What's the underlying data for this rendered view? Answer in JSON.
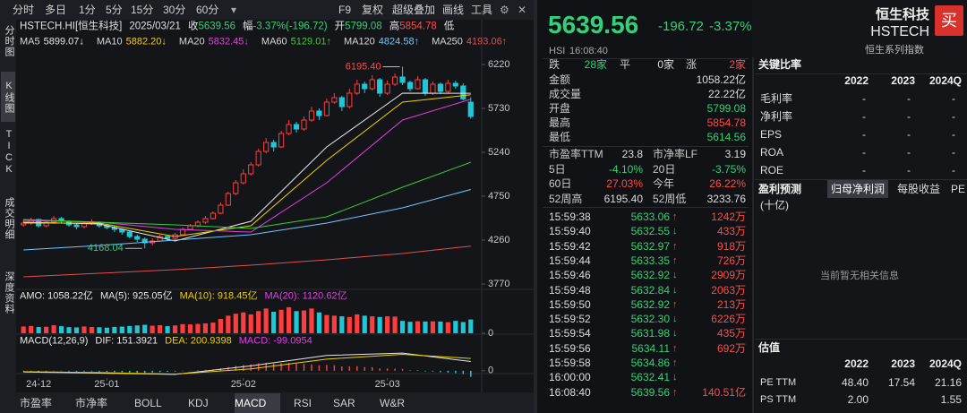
{
  "toolbar": {
    "periods": [
      "分时",
      "多日",
      "1分",
      "5分",
      "15分",
      "30分",
      "60分"
    ],
    "tools": [
      "F9",
      "复权",
      "超级叠加",
      "画线",
      "工具"
    ]
  },
  "sidebar": {
    "items": [
      "分时图",
      "K线图",
      "TICK",
      "成交明细",
      "深度资料"
    ],
    "active": 1
  },
  "chart_data": [
    {
      "type": "candlestick",
      "info": [
        {
          "label": "HSTECH.HI[恒生科技]"
        },
        {
          "label": "2025/03/21"
        },
        {
          "label": "收",
          "value": "5639.56",
          "tone": "down"
        },
        {
          "label": "幅",
          "value": "-3.37%(-196.72)",
          "tone": "down"
        },
        {
          "label": "开",
          "value": "5799.08",
          "tone": "down"
        },
        {
          "label": "高",
          "value": "5854.78",
          "tone": "up"
        },
        {
          "label": "低"
        }
      ],
      "colors": {
        "up": "#ff3d3d",
        "down": "#1fc8d8"
      },
      "ylim": [
        3720,
        6320
      ],
      "yticks": [
        3770,
        4260,
        4750,
        5240,
        5730,
        6220
      ],
      "grid": false,
      "ohlc": [
        [
          4430,
          4490,
          4410,
          4450
        ],
        [
          4450,
          4510,
          4430,
          4480
        ],
        [
          4490,
          4500,
          4400,
          4420
        ],
        [
          4420,
          4480,
          4400,
          4460
        ],
        [
          4460,
          4530,
          4440,
          4500
        ],
        [
          4500,
          4520,
          4450,
          4470
        ],
        [
          4470,
          4480,
          4410,
          4430
        ],
        [
          4430,
          4450,
          4380,
          4410
        ],
        [
          4410,
          4470,
          4390,
          4450
        ],
        [
          4450,
          4490,
          4430,
          4460
        ],
        [
          4460,
          4470,
          4400,
          4420
        ],
        [
          4420,
          4440,
          4380,
          4400
        ],
        [
          4400,
          4420,
          4350,
          4380
        ],
        [
          4380,
          4390,
          4320,
          4350
        ],
        [
          4350,
          4360,
          4280,
          4300
        ],
        [
          4300,
          4320,
          4240,
          4270
        ],
        [
          4270,
          4290,
          4168.04,
          4230
        ],
        [
          4230,
          4280,
          4200,
          4250
        ],
        [
          4250,
          4320,
          4240,
          4300
        ],
        [
          4300,
          4310,
          4250,
          4280
        ],
        [
          4280,
          4340,
          4270,
          4320
        ],
        [
          4320,
          4400,
          4310,
          4380
        ],
        [
          4380,
          4440,
          4370,
          4420
        ],
        [
          4420,
          4480,
          4400,
          4460
        ],
        [
          4460,
          4530,
          4440,
          4500
        ],
        [
          4500,
          4580,
          4490,
          4560
        ],
        [
          4560,
          4680,
          4550,
          4650
        ],
        [
          4650,
          4800,
          4640,
          4780
        ],
        [
          4780,
          4930,
          4760,
          4900
        ],
        [
          4900,
          5050,
          4880,
          5000
        ],
        [
          5000,
          5130,
          4980,
          5100
        ],
        [
          5100,
          5280,
          5080,
          5250
        ],
        [
          5250,
          5400,
          5230,
          5350
        ],
        [
          5350,
          5380,
          5250,
          5300
        ],
        [
          5300,
          5480,
          5290,
          5450
        ],
        [
          5450,
          5600,
          5430,
          5550
        ],
        [
          5550,
          5580,
          5460,
          5500
        ],
        [
          5500,
          5640,
          5480,
          5600
        ],
        [
          5600,
          5750,
          5580,
          5700
        ],
        [
          5700,
          5730,
          5600,
          5650
        ],
        [
          5650,
          5840,
          5640,
          5800
        ],
        [
          5800,
          5900,
          5780,
          5850
        ],
        [
          5850,
          5870,
          5700,
          5750
        ],
        [
          5750,
          5950,
          5730,
          5900
        ],
        [
          5900,
          6050,
          5880,
          6000
        ],
        [
          6000,
          6030,
          5900,
          5950
        ],
        [
          5950,
          6100,
          5930,
          6050
        ],
        [
          6050,
          6070,
          5860,
          5900
        ],
        [
          5900,
          6040,
          5880,
          6000
        ],
        [
          6000,
          6120,
          5980,
          6080
        ],
        [
          6080,
          6195.4,
          5990,
          6020
        ],
        [
          6020,
          6040,
          5920,
          5950
        ],
        [
          5950,
          6090,
          5940,
          6050
        ],
        [
          6050,
          6070,
          5870,
          5900
        ],
        [
          5900,
          6030,
          5880,
          6000
        ],
        [
          6000,
          6020,
          5890,
          5920
        ],
        [
          5920,
          6050,
          5900,
          6010
        ],
        [
          6010,
          6040,
          5950,
          5980
        ],
        [
          5980,
          6010,
          5820,
          5836.28
        ],
        [
          5799.08,
          5854.78,
          5614.56,
          5639.56
        ]
      ],
      "series": [
        {
          "name": "MA5",
          "color": "#e8e8e8",
          "label": "5899.07↓",
          "x": [
            0,
            10,
            20,
            30,
            40,
            50,
            59
          ],
          "values": [
            4460,
            4440,
            4250,
            4470,
            5300,
            5900,
            5899.07
          ]
        },
        {
          "name": "MA10",
          "color": "#f0d000",
          "label": "5882.20↓",
          "x": [
            0,
            10,
            20,
            30,
            40,
            50,
            59
          ],
          "values": [
            4450,
            4450,
            4300,
            4420,
            5150,
            5800,
            5882.2
          ]
        },
        {
          "name": "MA20",
          "color": "#e040e0",
          "label": "5832.45↓",
          "x": [
            0,
            10,
            20,
            30,
            40,
            50,
            59
          ],
          "values": [
            4480,
            4460,
            4380,
            4350,
            4900,
            5600,
            5832.45
          ]
        },
        {
          "name": "MA60",
          "color": "#34d034",
          "label": "5129.01↑",
          "x": [
            0,
            10,
            20,
            30,
            40,
            50,
            59
          ],
          "values": [
            4490,
            4460,
            4430,
            4390,
            4520,
            4850,
            5129.01
          ]
        },
        {
          "name": "MA120",
          "color": "#6cc8ff",
          "label": "4824.58↑",
          "x": [
            0,
            10,
            20,
            30,
            40,
            50,
            59
          ],
          "values": [
            4150,
            4200,
            4260,
            4320,
            4450,
            4620,
            4824.58
          ]
        },
        {
          "name": "MA250",
          "color": "#e05050",
          "label": "4193.06↑",
          "x": [
            0,
            10,
            20,
            30,
            40,
            50,
            59
          ],
          "values": [
            3850,
            3890,
            3930,
            3980,
            4040,
            4110,
            4193.06
          ]
        }
      ],
      "annotations": [
        {
          "label": "6195.40",
          "value": 6195.4,
          "index": 50
        },
        {
          "label": "4168.04",
          "value": 4168.04,
          "index": 16
        }
      ]
    },
    {
      "type": "bar",
      "ylim": [
        0,
        2200
      ],
      "yticks": [
        0
      ],
      "legend": [
        {
          "text": "AMO: 1058.22亿",
          "color": "#e8e8e8"
        },
        {
          "text": "MA(5): 925.05亿",
          "color": "#e8e8e8"
        },
        {
          "text": "MA(10): 918.45亿",
          "color": "#f0d000"
        },
        {
          "text": "MA(20): 1120.62亿",
          "color": "#e040e0"
        }
      ],
      "values": [
        520,
        560,
        480,
        500,
        610,
        540,
        470,
        450,
        520,
        480,
        460,
        430,
        490,
        510,
        560,
        600,
        650,
        580,
        620,
        540,
        600,
        700,
        680,
        720,
        760,
        820,
        1100,
        1350,
        1500,
        1600,
        1450,
        1700,
        1900,
        1650,
        1800,
        2000,
        1700,
        1750,
        1900,
        1600,
        1400,
        1350,
        1300,
        1250,
        1450,
        1350,
        1300,
        1250,
        1300,
        1280,
        950,
        880,
        920,
        900,
        915,
        900,
        850,
        950,
        860,
        1058.22
      ]
    },
    {
      "type": "macd",
      "ylim": [
        -120,
        350
      ],
      "yticks": [
        0
      ],
      "colors": {
        "up": "#ff3d3d",
        "down": "#1fc8d8"
      },
      "legend": [
        {
          "text": "MACD(12,26,9)",
          "color": "#e8e8e8"
        },
        {
          "text": "DIF: 151.3921",
          "color": "#e8e8e8"
        },
        {
          "text": "DEA: 200.9398",
          "color": "#f0d000"
        },
        {
          "text": "MACD: -99.0954",
          "color": "#e040e0"
        }
      ],
      "values": [
        -10,
        -8,
        -12,
        -9,
        -5,
        -6,
        -10,
        -14,
        -12,
        -11,
        -15,
        -18,
        -22,
        -25,
        -30,
        -33,
        -35,
        -30,
        -22,
        -18,
        -12,
        -5,
        2,
        8,
        15,
        22,
        40,
        60,
        80,
        95,
        105,
        120,
        130,
        120,
        125,
        130,
        115,
        110,
        105,
        90,
        95,
        90,
        70,
        72,
        75,
        60,
        58,
        40,
        38,
        35,
        30,
        10,
        12,
        -10,
        -12,
        -25,
        -30,
        -40,
        -55,
        -99.0954
      ],
      "series": [
        {
          "color": "#e8e8e8",
          "x": [
            0,
            10,
            20,
            30,
            40,
            50,
            59
          ],
          "values": [
            -20,
            -40,
            -60,
            80,
            250,
            290,
            151.3921
          ]
        },
        {
          "color": "#f0d000",
          "x": [
            0,
            10,
            20,
            30,
            40,
            50,
            59
          ],
          "values": [
            -15,
            -30,
            -55,
            30,
            190,
            270,
            200.9398
          ]
        }
      ],
      "xticks": [
        {
          "value": 2,
          "label": "24-12"
        },
        {
          "value": 11,
          "label": "25-01"
        },
        {
          "value": 29,
          "label": "25-02"
        },
        {
          "value": 48,
          "label": "25-03"
        }
      ]
    }
  ],
  "indicator_tabs": {
    "items": [
      "市盈率",
      "市净率",
      "BOLL",
      "KDJ",
      "MACD",
      "RSI",
      "SAR",
      "W&R"
    ],
    "active": 4
  },
  "quote": {
    "price": "5639.56",
    "change": "-196.72",
    "change_pct": "-3.37%",
    "market": "HSI",
    "time": "16:08:40",
    "name": "恒生科技",
    "code": "HSTECH",
    "group": "恒生系列指数",
    "buy": "买"
  },
  "breadth": [
    {
      "label": "跌",
      "value": "28家",
      "tone": "down"
    },
    {
      "label": "平",
      "value": "0家"
    },
    {
      "label": "涨",
      "value": "2家",
      "tone": "up"
    }
  ],
  "stats": [
    {
      "label": "金额",
      "value": "1058.22亿"
    },
    {
      "label": "成交量",
      "value": "22.22亿"
    },
    {
      "label": "开盘",
      "value": "5799.08",
      "tone": "down"
    },
    {
      "label": "最高",
      "value": "5854.78",
      "tone": "up"
    },
    {
      "label": "最低",
      "value": "5614.56",
      "tone": "down"
    }
  ],
  "pairs": [
    [
      {
        "label": "市盈率TTM",
        "value": "23.8"
      },
      {
        "label": "市净率LF",
        "value": "3.19"
      }
    ],
    [
      {
        "label": "5日",
        "value": "-4.10%",
        "tone": "down"
      },
      {
        "label": "20日",
        "value": "-3.75%",
        "tone": "down"
      }
    ],
    [
      {
        "label": "60日",
        "value": "27.03%",
        "tone": "up"
      },
      {
        "label": "今年",
        "value": "26.22%",
        "tone": "up"
      }
    ],
    [
      {
        "label": "52周高",
        "value": "6195.40"
      },
      {
        "label": "52周低",
        "value": "3233.76"
      }
    ]
  ],
  "trades": [
    {
      "time": "15:59:38",
      "price": "5633.06",
      "dir": "↑",
      "volume": "1242万"
    },
    {
      "time": "15:59:40",
      "price": "5632.55",
      "dir": "↓",
      "volume": "433万"
    },
    {
      "time": "15:59:42",
      "price": "5632.97",
      "dir": "↑",
      "volume": "918万"
    },
    {
      "time": "15:59:44",
      "price": "5633.35",
      "dir": "↑",
      "volume": "726万"
    },
    {
      "time": "15:59:46",
      "price": "5632.92",
      "dir": "↓",
      "volume": "2909万"
    },
    {
      "time": "15:59:48",
      "price": "5632.84",
      "dir": "↓",
      "volume": "2063万"
    },
    {
      "time": "15:59:50",
      "price": "5632.92",
      "dir": "↑",
      "volume": "213万"
    },
    {
      "time": "15:59:52",
      "price": "5632.30",
      "dir": "↓",
      "volume": "6226万"
    },
    {
      "time": "15:59:54",
      "price": "5631.98",
      "dir": "↓",
      "volume": "435万"
    },
    {
      "time": "15:59:56",
      "price": "5634.11",
      "dir": "↑",
      "volume": "692万"
    },
    {
      "time": "15:59:58",
      "price": "5634.86",
      "dir": "↑",
      "volume": null
    },
    {
      "time": "16:00:00",
      "price": "5632.41",
      "dir": "↓",
      "volume": null
    },
    {
      "time": "16:08:40",
      "price": "5639.56",
      "dir": "↑",
      "volume": "140.51亿"
    }
  ],
  "ratios": {
    "title": "关键比率",
    "columns": [
      "2022",
      "2023",
      "2024Q"
    ],
    "rows": [
      {
        "label": "毛利率",
        "values": [
          "-",
          "-",
          "-"
        ]
      },
      {
        "label": "净利率",
        "values": [
          "-",
          "-",
          "-"
        ]
      },
      {
        "label": "EPS",
        "values": [
          "-",
          "-",
          "-"
        ]
      },
      {
        "label": "ROA",
        "values": [
          "-",
          "-",
          "-"
        ]
      },
      {
        "label": "ROE",
        "values": [
          "-",
          "-",
          "-"
        ]
      }
    ]
  },
  "forecast": {
    "title": "盈利预测",
    "tabs": [
      "归母净利润",
      "每股收益",
      "PE"
    ],
    "active": 0,
    "unit": "(十亿)",
    "empty": "当前暂无相关信息"
  },
  "valuation": {
    "title": "估值",
    "columns": [
      "2022",
      "2023",
      "2024Q"
    ],
    "rows": [
      {
        "label": "PE TTM",
        "values": [
          "48.40",
          "17.54",
          "21.16"
        ]
      },
      {
        "label": "PS TTM",
        "values": [
          "2.00",
          null,
          "1.55"
        ]
      }
    ]
  }
}
